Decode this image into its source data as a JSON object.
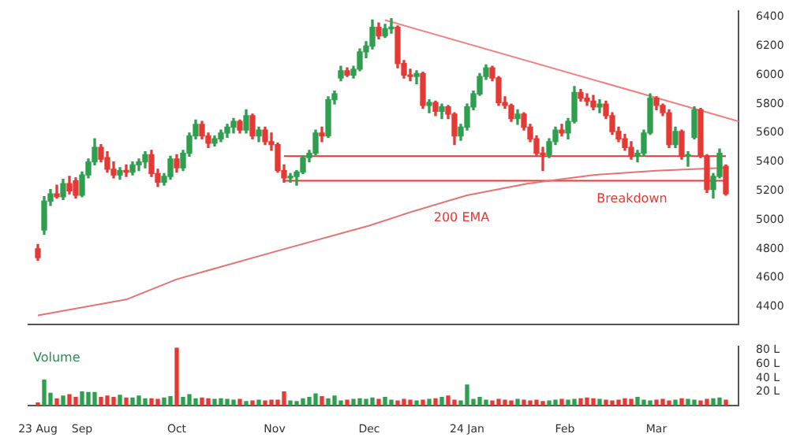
{
  "chart_data": [
    {
      "type": "candlestick",
      "x": [
        "2023-08-18",
        "2023-08-20",
        "2023-08-22",
        "2023-08-24",
        "2023-08-26",
        "2023-08-28",
        "2023-08-30",
        "2023-09-01",
        "2023-09-03",
        "2023-09-05",
        "2023-09-07",
        "2023-09-09",
        "2023-09-11",
        "2023-09-13",
        "2023-09-15",
        "2023-09-17",
        "2023-09-19",
        "2023-09-21",
        "2023-09-23",
        "2023-09-25",
        "2023-09-27",
        "2023-09-29",
        "2023-10-01",
        "2023-10-03",
        "2023-10-05",
        "2023-10-07",
        "2023-10-09",
        "2023-10-11",
        "2023-10-13",
        "2023-10-15",
        "2023-10-17",
        "2023-10-19",
        "2023-10-21",
        "2023-10-23",
        "2023-10-25",
        "2023-10-27",
        "2023-10-29",
        "2023-10-31",
        "2023-11-02",
        "2023-11-04",
        "2023-11-06",
        "2023-11-08",
        "2023-11-10",
        "2023-11-12",
        "2023-11-14",
        "2023-11-16",
        "2023-11-18",
        "2023-11-20",
        "2023-11-22",
        "2023-11-24",
        "2023-11-26",
        "2023-11-28",
        "2023-11-30",
        "2023-12-02",
        "2023-12-04",
        "2023-12-06",
        "2023-12-08",
        "2023-12-10",
        "2023-12-12",
        "2023-12-14",
        "2023-12-16",
        "2023-12-18",
        "2023-12-20",
        "2023-12-22",
        "2023-12-24",
        "2023-12-26",
        "2023-12-28",
        "2023-12-30",
        "2024-01-01",
        "2024-01-03",
        "2024-01-05",
        "2024-01-07",
        "2024-01-09",
        "2024-01-11",
        "2024-01-13",
        "2024-01-15",
        "2024-01-17",
        "2024-01-19",
        "2024-01-21",
        "2024-01-23",
        "2024-01-25",
        "2024-01-27",
        "2024-01-29",
        "2024-01-31",
        "2024-02-02",
        "2024-02-04",
        "2024-02-06",
        "2024-02-08",
        "2024-02-10",
        "2024-02-12",
        "2024-02-14",
        "2024-02-16",
        "2024-02-18",
        "2024-02-20",
        "2024-02-22",
        "2024-02-24",
        "2024-02-26",
        "2024-02-28",
        "2024-03-01",
        "2024-03-03",
        "2024-03-05",
        "2024-03-07",
        "2024-03-09",
        "2024-03-11",
        "2024-03-13",
        "2024-03-15",
        "2024-03-17",
        "2024-03-19",
        "2024-03-21",
        "2024-03-23"
      ],
      "ohlc": [
        [
          4800,
          4830,
          4720,
          4740
        ],
        [
          4930,
          5160,
          4900,
          5130
        ],
        [
          5130,
          5210,
          5100,
          5180
        ],
        [
          5180,
          5240,
          5150,
          5160
        ],
        [
          5160,
          5280,
          5140,
          5250
        ],
        [
          5250,
          5300,
          5180,
          5200
        ],
        [
          5270,
          5290,
          5150,
          5170
        ],
        [
          5170,
          5330,
          5160,
          5310
        ],
        [
          5310,
          5420,
          5290,
          5400
        ],
        [
          5400,
          5560,
          5380,
          5500
        ],
        [
          5500,
          5520,
          5400,
          5420
        ],
        [
          5430,
          5470,
          5330,
          5350
        ],
        [
          5350,
          5400,
          5290,
          5310
        ],
        [
          5310,
          5360,
          5280,
          5340
        ],
        [
          5340,
          5380,
          5300,
          5330
        ],
        [
          5330,
          5400,
          5310,
          5380
        ],
        [
          5380,
          5420,
          5340,
          5400
        ],
        [
          5400,
          5470,
          5360,
          5450
        ],
        [
          5450,
          5480,
          5300,
          5320
        ],
        [
          5320,
          5350,
          5230,
          5260
        ],
        [
          5260,
          5320,
          5240,
          5300
        ],
        [
          5300,
          5440,
          5280,
          5420
        ],
        [
          5420,
          5450,
          5330,
          5360
        ],
        [
          5360,
          5480,
          5340,
          5460
        ],
        [
          5460,
          5600,
          5440,
          5580
        ],
        [
          5580,
          5690,
          5560,
          5660
        ],
        [
          5660,
          5680,
          5560,
          5580
        ],
        [
          5580,
          5600,
          5500,
          5530
        ],
        [
          5530,
          5580,
          5510,
          5560
        ],
        [
          5560,
          5620,
          5540,
          5600
        ],
        [
          5600,
          5660,
          5570,
          5640
        ],
        [
          5640,
          5700,
          5600,
          5680
        ],
        [
          5680,
          5690,
          5600,
          5620
        ],
        [
          5620,
          5760,
          5600,
          5720
        ],
        [
          5720,
          5730,
          5560,
          5580
        ],
        [
          5580,
          5640,
          5540,
          5620
        ],
        [
          5620,
          5640,
          5520,
          5540
        ],
        [
          5540,
          5600,
          5480,
          5520
        ],
        [
          5520,
          5530,
          5330,
          5340
        ],
        [
          5340,
          5380,
          5260,
          5290
        ],
        [
          5290,
          5320,
          5260,
          5300
        ],
        [
          5300,
          5340,
          5240,
          5330
        ],
        [
          5330,
          5440,
          5320,
          5430
        ],
        [
          5430,
          5480,
          5400,
          5460
        ],
        [
          5460,
          5620,
          5450,
          5600
        ],
        [
          5600,
          5640,
          5540,
          5580
        ],
        [
          5580,
          5850,
          5570,
          5830
        ],
        [
          5830,
          5890,
          5800,
          5870
        ],
        [
          5980,
          6060,
          5960,
          6030
        ],
        [
          6030,
          6050,
          5990,
          6000
        ],
        [
          6000,
          6060,
          5980,
          6040
        ],
        [
          6040,
          6180,
          6030,
          6160
        ],
        [
          6160,
          6230,
          6120,
          6200
        ],
        [
          6200,
          6380,
          6180,
          6330
        ],
        [
          6330,
          6360,
          6250,
          6270
        ],
        [
          6270,
          6350,
          6260,
          6320
        ],
        [
          6320,
          6390,
          6290,
          6330
        ],
        [
          6330,
          6340,
          6050,
          6080
        ],
        [
          6080,
          6100,
          5980,
          6000
        ],
        [
          6000,
          6040,
          5960,
          5990
        ],
        [
          5990,
          6030,
          5940,
          6010
        ],
        [
          6010,
          6020,
          5770,
          5790
        ],
        [
          5790,
          5830,
          5740,
          5810
        ],
        [
          5810,
          5820,
          5720,
          5750
        ],
        [
          5750,
          5800,
          5700,
          5780
        ],
        [
          5780,
          5790,
          5700,
          5730
        ],
        [
          5730,
          5740,
          5520,
          5580
        ],
        [
          5580,
          5660,
          5550,
          5640
        ],
        [
          5640,
          5800,
          5620,
          5780
        ],
        [
          5780,
          5890,
          5760,
          5870
        ],
        [
          5870,
          6010,
          5860,
          5990
        ],
        [
          5990,
          6070,
          5970,
          6050
        ],
        [
          6050,
          6060,
          5960,
          5980
        ],
        [
          5980,
          5990,
          5790,
          5810
        ],
        [
          5810,
          5850,
          5770,
          5790
        ],
        [
          5790,
          5800,
          5680,
          5700
        ],
        [
          5700,
          5760,
          5660,
          5730
        ],
        [
          5730,
          5740,
          5620,
          5640
        ],
        [
          5640,
          5660,
          5540,
          5560
        ],
        [
          5560,
          5580,
          5440,
          5460
        ],
        [
          5460,
          5500,
          5340,
          5450
        ],
        [
          5450,
          5560,
          5430,
          5540
        ],
        [
          5540,
          5640,
          5520,
          5620
        ],
        [
          5620,
          5660,
          5580,
          5600
        ],
        [
          5600,
          5700,
          5560,
          5680
        ],
        [
          5680,
          5920,
          5670,
          5880
        ],
        [
          5880,
          5900,
          5820,
          5840
        ],
        [
          5840,
          5870,
          5790,
          5820
        ],
        [
          5820,
          5860,
          5760,
          5780
        ],
        [
          5780,
          5830,
          5740,
          5800
        ],
        [
          5800,
          5820,
          5700,
          5720
        ],
        [
          5720,
          5740,
          5590,
          5610
        ],
        [
          5610,
          5640,
          5540,
          5560
        ],
        [
          5560,
          5590,
          5480,
          5500
        ],
        [
          5500,
          5540,
          5420,
          5440
        ],
        [
          5440,
          5480,
          5400,
          5460
        ],
        [
          5460,
          5620,
          5440,
          5600
        ],
        [
          5600,
          5870,
          5590,
          5840
        ],
        [
          5840,
          5850,
          5760,
          5790
        ],
        [
          5790,
          5800,
          5720,
          5740
        ],
        [
          5740,
          5760,
          5500,
          5520
        ],
        [
          5520,
          5640,
          5500,
          5610
        ],
        [
          5610,
          5620,
          5420,
          5440
        ],
        [
          5440,
          5470,
          5370,
          5450
        ],
        [
          5570,
          5780,
          5560,
          5760
        ],
        [
          5760,
          5770,
          5430,
          5440
        ],
        [
          5440,
          5450,
          5190,
          5210
        ],
        [
          5210,
          5320,
          5150,
          5300
        ],
        [
          5300,
          5490,
          5290,
          5460
        ],
        [
          5370,
          5380,
          5170,
          5180
        ]
      ],
      "colors": [
        "#e53935",
        "#2e9e4f",
        "#2e9e4f",
        "#e53935",
        "#2e9e4f",
        "#e53935",
        "#e53935",
        "#2e9e4f",
        "#2e9e4f",
        "#2e9e4f",
        "#e53935",
        "#e53935",
        "#e53935",
        "#2e9e4f",
        "#e53935",
        "#2e9e4f",
        "#2e9e4f",
        "#2e9e4f",
        "#e53935",
        "#e53935",
        "#2e9e4f",
        "#2e9e4f",
        "#e53935",
        "#2e9e4f",
        "#2e9e4f",
        "#2e9e4f",
        "#e53935",
        "#e53935",
        "#2e9e4f",
        "#2e9e4f",
        "#2e9e4f",
        "#2e9e4f",
        "#e53935",
        "#2e9e4f",
        "#e53935",
        "#2e9e4f",
        "#e53935",
        "#e53935",
        "#e53935",
        "#e53935",
        "#2e9e4f",
        "#2e9e4f",
        "#2e9e4f",
        "#2e9e4f",
        "#2e9e4f",
        "#e53935",
        "#2e9e4f",
        "#2e9e4f",
        "#2e9e4f",
        "#e53935",
        "#2e9e4f",
        "#2e9e4f",
        "#2e9e4f",
        "#2e9e4f",
        "#e53935",
        "#2e9e4f",
        "#2e9e4f",
        "#e53935",
        "#e53935",
        "#e53935",
        "#2e9e4f",
        "#e53935",
        "#2e9e4f",
        "#e53935",
        "#2e9e4f",
        "#e53935",
        "#e53935",
        "#2e9e4f",
        "#2e9e4f",
        "#2e9e4f",
        "#2e9e4f",
        "#2e9e4f",
        "#e53935",
        "#e53935",
        "#e53935",
        "#e53935",
        "#2e9e4f",
        "#e53935",
        "#e53935",
        "#e53935",
        "#e53935",
        "#2e9e4f",
        "#2e9e4f",
        "#e53935",
        "#2e9e4f",
        "#2e9e4f",
        "#e53935",
        "#e53935",
        "#e53935",
        "#2e9e4f",
        "#e53935",
        "#e53935",
        "#e53935",
        "#e53935",
        "#e53935",
        "#2e9e4f",
        "#2e9e4f",
        "#2e9e4f",
        "#e53935",
        "#e53935",
        "#e53935",
        "#2e9e4f",
        "#e53935",
        "#2e9e4f",
        "#2e9e4f",
        "#e53935",
        "#e53935",
        "#2e9e4f",
        "#2e9e4f",
        "#e53935"
      ],
      "series": [
        {
          "type": "line",
          "color": "#e57373",
          "x": [
            "2023-08-18",
            "2023-09-15",
            "2023-10-01",
            "2023-11-01",
            "2023-12-01",
            "2023-12-15",
            "2024-01-01",
            "2024-01-20",
            "2024-02-10",
            "2024-03-01",
            "2024-03-23"
          ],
          "values": [
            4340,
            4450,
            4590,
            4780,
            4960,
            5060,
            5170,
            5250,
            5310,
            5340,
            5360
          ]
        },
        {
          "type": "line",
          "color": "#f08080",
          "x": [
            "2023-12-06",
            "2024-03-27"
          ],
          "values": [
            6380,
            5680
          ]
        },
        {
          "type": "line",
          "color": "#e53935",
          "x": [
            "2023-11-04",
            "2024-03-23"
          ],
          "values": [
            5440,
            5440
          ]
        },
        {
          "type": "line",
          "color": "#e53935",
          "x": [
            "2023-11-04",
            "2024-03-23"
          ],
          "values": [
            5270,
            5270
          ]
        }
      ],
      "xlim": [
        "2023-08-15",
        "2024-03-27"
      ],
      "ylim": [
        4280,
        6440
      ],
      "yticks": [
        4400,
        4600,
        4800,
        5000,
        5200,
        5400,
        5600,
        5800,
        6000,
        6200,
        6400
      ],
      "tick_labels": "y",
      "annotations": [
        "200 EMA",
        "Breakdown"
      ]
    },
    {
      "type": "bar",
      "title": "Volume",
      "x": [
        "2023-08-18",
        "2023-08-20",
        "2023-08-22",
        "2023-08-24",
        "2023-08-26",
        "2023-08-28",
        "2023-08-30",
        "2023-09-01",
        "2023-09-03",
        "2023-09-05",
        "2023-09-07",
        "2023-09-09",
        "2023-09-11",
        "2023-09-13",
        "2023-09-15",
        "2023-09-17",
        "2023-09-19",
        "2023-09-21",
        "2023-09-23",
        "2023-09-25",
        "2023-09-27",
        "2023-09-29",
        "2023-10-01",
        "2023-10-03",
        "2023-10-05",
        "2023-10-07",
        "2023-10-09",
        "2023-10-11",
        "2023-10-13",
        "2023-10-15",
        "2023-10-17",
        "2023-10-19",
        "2023-10-21",
        "2023-10-23",
        "2023-10-25",
        "2023-10-27",
        "2023-10-29",
        "2023-10-31",
        "2023-11-02",
        "2023-11-04",
        "2023-11-06",
        "2023-11-08",
        "2023-11-10",
        "2023-11-12",
        "2023-11-14",
        "2023-11-16",
        "2023-11-18",
        "2023-11-20",
        "2023-11-22",
        "2023-11-24",
        "2023-11-26",
        "2023-11-28",
        "2023-11-30",
        "2023-12-02",
        "2023-12-04",
        "2023-12-06",
        "2023-12-08",
        "2023-12-10",
        "2023-12-12",
        "2023-12-14",
        "2023-12-16",
        "2023-12-18",
        "2023-12-20",
        "2023-12-22",
        "2023-12-24",
        "2023-12-26",
        "2023-12-28",
        "2023-12-30",
        "2024-01-01",
        "2024-01-03",
        "2024-01-05",
        "2024-01-07",
        "2024-01-09",
        "2024-01-11",
        "2024-01-13",
        "2024-01-15",
        "2024-01-17",
        "2024-01-19",
        "2024-01-21",
        "2024-01-23",
        "2024-01-25",
        "2024-01-27",
        "2024-01-29",
        "2024-01-31",
        "2024-02-02",
        "2024-02-04",
        "2024-02-06",
        "2024-02-08",
        "2024-02-10",
        "2024-02-12",
        "2024-02-14",
        "2024-02-16",
        "2024-02-18",
        "2024-02-20",
        "2024-02-22",
        "2024-02-24",
        "2024-02-26",
        "2024-02-28",
        "2024-03-01",
        "2024-03-03",
        "2024-03-05",
        "2024-03-07",
        "2024-03-09",
        "2024-03-11",
        "2024-03-13",
        "2024-03-15",
        "2024-03-17",
        "2024-03-19",
        "2024-03-21",
        "2024-03-23"
      ],
      "values": [
        4,
        37,
        18,
        10,
        14,
        16,
        12,
        20,
        19,
        19,
        12,
        14,
        12,
        15,
        11,
        11,
        14,
        10,
        10,
        9,
        11,
        13,
        83,
        12,
        16,
        10,
        11,
        10,
        9,
        10,
        9,
        8,
        9,
        6,
        7,
        8,
        7,
        8,
        8,
        20,
        7,
        6,
        10,
        12,
        17,
        13,
        10,
        14,
        7,
        8,
        9,
        10,
        9,
        11,
        9,
        12,
        8,
        7,
        9,
        8,
        7,
        8,
        9,
        10,
        12,
        14,
        8,
        7,
        30,
        9,
        12,
        8,
        7,
        9,
        8,
        7,
        9,
        8,
        7,
        8,
        6,
        7,
        8,
        9,
        8,
        9,
        10,
        11,
        10,
        9,
        8,
        7,
        8,
        10,
        9,
        12,
        8,
        7,
        8,
        9,
        7,
        8,
        10,
        9,
        8,
        7,
        9,
        10,
        11,
        8
      ],
      "colors": [
        "#e53935",
        "#2e9e4f",
        "#2e9e4f",
        "#e53935",
        "#2e9e4f",
        "#e53935",
        "#e53935",
        "#2e9e4f",
        "#2e9e4f",
        "#2e9e4f",
        "#e53935",
        "#e53935",
        "#e53935",
        "#2e9e4f",
        "#e53935",
        "#2e9e4f",
        "#2e9e4f",
        "#2e9e4f",
        "#e53935",
        "#e53935",
        "#2e9e4f",
        "#2e9e4f",
        "#e53935",
        "#2e9e4f",
        "#2e9e4f",
        "#2e9e4f",
        "#e53935",
        "#e53935",
        "#2e9e4f",
        "#2e9e4f",
        "#2e9e4f",
        "#2e9e4f",
        "#e53935",
        "#2e9e4f",
        "#e53935",
        "#2e9e4f",
        "#e53935",
        "#e53935",
        "#e53935",
        "#e53935",
        "#2e9e4f",
        "#2e9e4f",
        "#2e9e4f",
        "#2e9e4f",
        "#2e9e4f",
        "#e53935",
        "#2e9e4f",
        "#2e9e4f",
        "#2e9e4f",
        "#e53935",
        "#2e9e4f",
        "#2e9e4f",
        "#2e9e4f",
        "#2e9e4f",
        "#e53935",
        "#2e9e4f",
        "#2e9e4f",
        "#e53935",
        "#e53935",
        "#e53935",
        "#2e9e4f",
        "#e53935",
        "#2e9e4f",
        "#e53935",
        "#2e9e4f",
        "#e53935",
        "#e53935",
        "#2e9e4f",
        "#2e9e4f",
        "#2e9e4f",
        "#2e9e4f",
        "#2e9e4f",
        "#e53935",
        "#e53935",
        "#e53935",
        "#e53935",
        "#2e9e4f",
        "#e53935",
        "#e53935",
        "#e53935",
        "#e53935",
        "#2e9e4f",
        "#2e9e4f",
        "#e53935",
        "#2e9e4f",
        "#2e9e4f",
        "#e53935",
        "#e53935",
        "#e53935",
        "#2e9e4f",
        "#e53935",
        "#e53935",
        "#e53935",
        "#e53935",
        "#e53935",
        "#2e9e4f",
        "#2e9e4f",
        "#2e9e4f",
        "#e53935",
        "#e53935",
        "#e53935",
        "#2e9e4f",
        "#e53935",
        "#2e9e4f",
        "#2e9e4f",
        "#e53935",
        "#e53935",
        "#2e9e4f",
        "#2e9e4f",
        "#e53935"
      ],
      "xlim": [
        "2023-08-15",
        "2024-03-27"
      ],
      "xticks": [
        {
          "value": "2023-08-18",
          "label": "23 Aug"
        },
        {
          "value": "2023-09-01",
          "label": "Sep"
        },
        {
          "value": "2023-10-01",
          "label": "Oct"
        },
        {
          "value": "2023-11-01",
          "label": "Nov"
        },
        {
          "value": "2023-12-01",
          "label": "Dec"
        },
        {
          "value": "2024-01-01",
          "label": "24 Jan"
        },
        {
          "value": "2024-02-01",
          "label": "Feb"
        },
        {
          "value": "2024-03-01",
          "label": "Mar"
        }
      ],
      "ylim": [
        0,
        85
      ],
      "yticks": [
        {
          "value": 20,
          "label": "20 L"
        },
        {
          "value": 40,
          "label": "40 L"
        },
        {
          "value": 60,
          "label": "60 L"
        },
        {
          "value": 80,
          "label": "80 L"
        }
      ]
    }
  ]
}
